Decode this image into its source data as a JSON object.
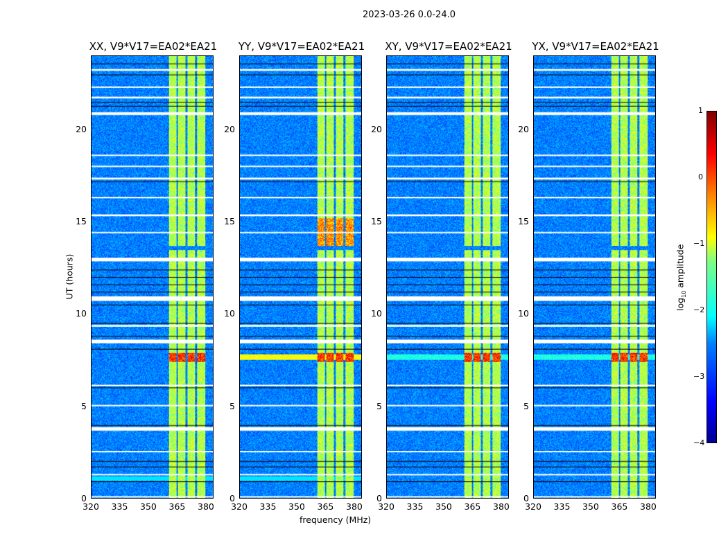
{
  "chart_data": {
    "type": "heatmap",
    "title": "2023-03-26 0.0-24.0",
    "xlabel": "frequency (MHz)",
    "ylabel": "UT (hours)",
    "xlim": [
      320,
      384
    ],
    "ylim": [
      0,
      24
    ],
    "xticks": [
      "320",
      "335",
      "350",
      "365",
      "380"
    ],
    "xtick_values": [
      320,
      335,
      350,
      365,
      380
    ],
    "yticks": [
      "0",
      "5",
      "10",
      "15",
      "20"
    ],
    "ytick_values": [
      0,
      5,
      10,
      15,
      20
    ],
    "panels": [
      {
        "title": "XX, V9*V17=EA02*EA21",
        "pol": "XX",
        "yy_streak": false
      },
      {
        "title": "YY, V9*V17=EA02*EA21",
        "pol": "YY",
        "yy_streak": true
      },
      {
        "title": "XY, V9*V17=EA02*EA21",
        "pol": "XY",
        "yy_streak": false
      },
      {
        "title": "YX, V9*V17=EA02*EA21",
        "pol": "YX",
        "yy_streak": false
      }
    ],
    "rfi_bands_mhz": [
      [
        360.5,
        364.5
      ],
      [
        365.5,
        369.5
      ],
      [
        370.5,
        374.5
      ],
      [
        375.5,
        380
      ]
    ],
    "flagged_hours": [
      [
        0.05,
        0.1
      ],
      [
        1.25,
        1.3
      ],
      [
        2.5,
        2.55
      ],
      [
        3.65,
        3.85
      ],
      [
        5.0,
        5.05
      ],
      [
        6.1,
        6.15
      ],
      [
        8.4,
        8.6
      ],
      [
        9.3,
        9.4
      ],
      [
        10.7,
        10.95
      ],
      [
        12.85,
        13.05
      ],
      [
        14.4,
        14.45
      ],
      [
        15.3,
        15.4
      ],
      [
        16.3,
        16.35
      ],
      [
        17.3,
        17.4
      ],
      [
        18.0,
        18.05
      ],
      [
        18.6,
        18.65
      ],
      [
        20.8,
        20.95
      ],
      [
        21.7,
        21.8
      ],
      [
        22.3,
        22.35
      ],
      [
        23.2,
        23.3
      ]
    ],
    "black_line_hours": [
      0.9,
      1.7,
      2.0,
      3.95,
      6.0,
      8.1,
      8.8,
      9.5,
      10.5,
      11.2,
      11.6,
      12.0,
      12.4,
      17.2,
      21.3,
      21.5,
      23.0,
      23.6
    ],
    "rfi_event_hour": [
      7.4,
      7.9
    ],
    "colorbar": {
      "label": "log10 amplitude",
      "range": [
        -4,
        1
      ],
      "ticks": [
        "1",
        "0",
        "−1",
        "−2",
        "−3",
        "−4"
      ],
      "tick_values": [
        1,
        0,
        -1,
        -2,
        -3,
        -4
      ]
    }
  }
}
